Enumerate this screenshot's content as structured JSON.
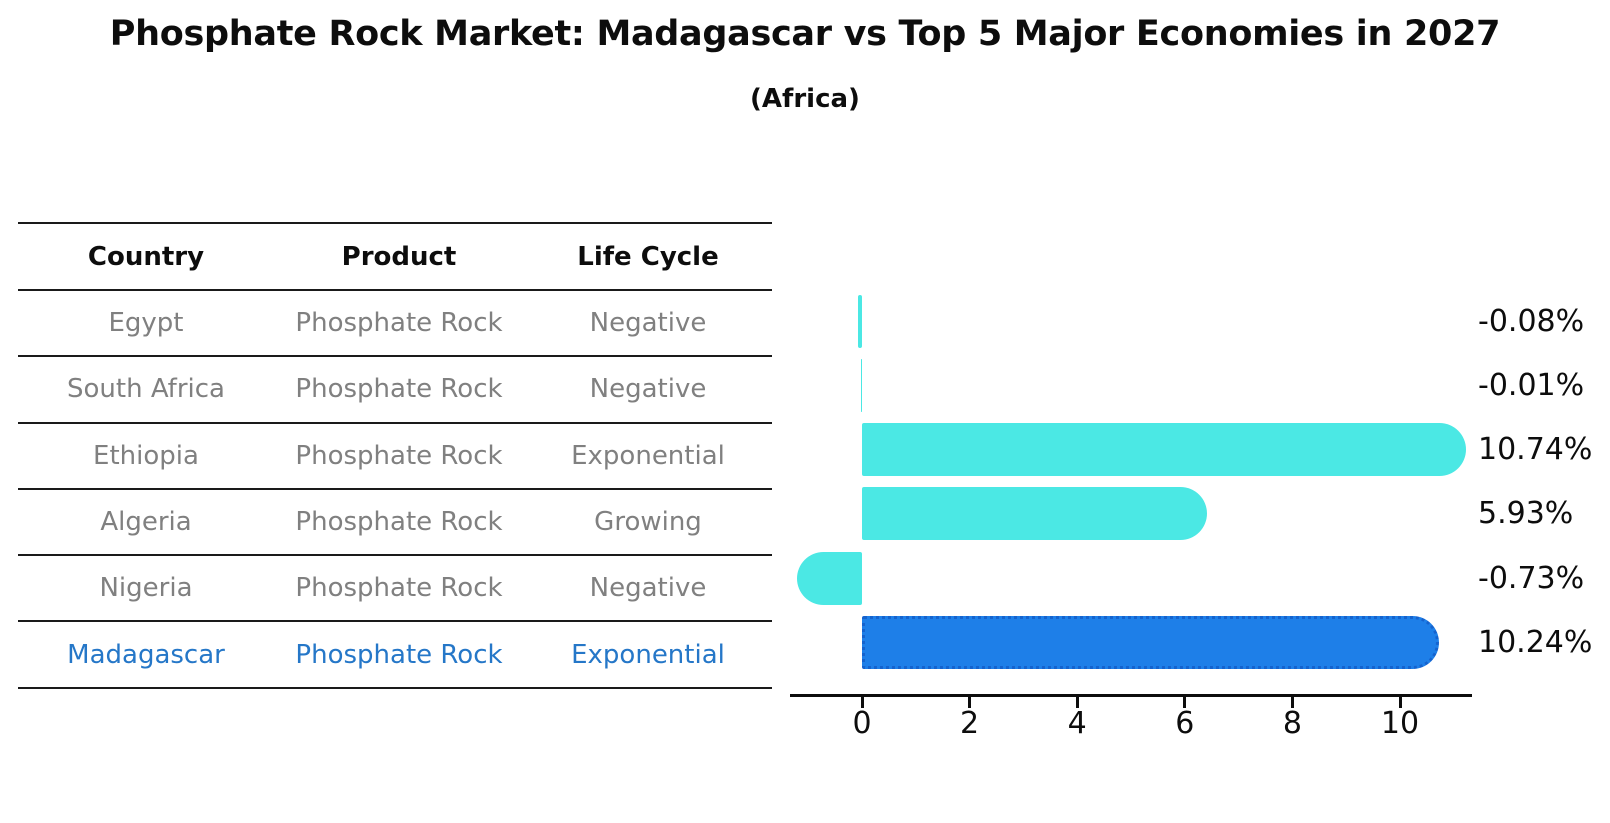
{
  "title": "Phosphate Rock Market: Madagascar vs Top 5 Major Economies in 2027",
  "subtitle": "(Africa)",
  "table": {
    "headers": [
      "Country",
      "Product",
      "Life Cycle"
    ],
    "rows": [
      {
        "country": "Egypt",
        "product": "Phosphate Rock",
        "life_cycle": "Negative",
        "highlight": false
      },
      {
        "country": "South Africa",
        "product": "Phosphate Rock",
        "life_cycle": "Negative",
        "highlight": false
      },
      {
        "country": "Ethiopia",
        "product": "Phosphate Rock",
        "life_cycle": "Exponential",
        "highlight": false
      },
      {
        "country": "Algeria",
        "product": "Phosphate Rock",
        "life_cycle": "Growing",
        "highlight": false
      },
      {
        "country": "Nigeria",
        "product": "Phosphate Rock",
        "life_cycle": "Negative",
        "highlight": false
      },
      {
        "country": "Madagascar",
        "product": "Phosphate Rock",
        "life_cycle": "Exponential",
        "highlight": true
      }
    ]
  },
  "chart_data": {
    "type": "bar",
    "orientation": "horizontal",
    "categories": [
      "Egypt",
      "South Africa",
      "Ethiopia",
      "Algeria",
      "Nigeria",
      "Madagascar"
    ],
    "values": [
      -0.08,
      -0.01,
      10.74,
      5.93,
      -0.73,
      10.24
    ],
    "value_labels": [
      "-0.08%",
      "-0.01%",
      "10.74%",
      "5.93%",
      "-0.73%",
      "10.24%"
    ],
    "xticks": [
      0,
      2,
      4,
      6,
      8,
      10
    ],
    "xtick_labels": [
      "0",
      "2",
      "4",
      "6",
      "8",
      "10"
    ],
    "xlim": [
      -1.35,
      11.35
    ],
    "grid": false,
    "legend": false,
    "highlight_index": 5
  },
  "colors": {
    "bar_default": "#4be8e4",
    "bar_highlight": "#1e7fe8",
    "bar_highlight_border": "#1563ce",
    "highlight_text": "#2577c8",
    "muted_text": "#808080",
    "axis": "#0d0d0d"
  }
}
